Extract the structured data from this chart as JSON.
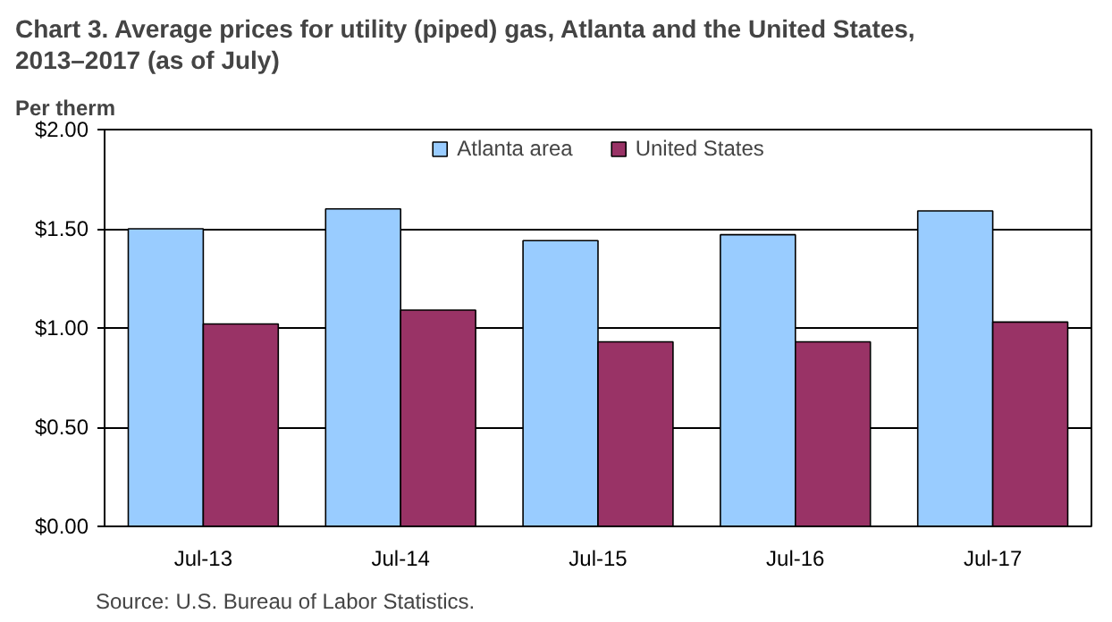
{
  "chart_data": {
    "type": "bar",
    "title": "Chart 3. Average prices for utility (piped) gas, Atlanta and the United States, 2013–2017 (as of July)",
    "ylabel": "Per therm",
    "categories": [
      "Jul-13",
      "Jul-14",
      "Jul-15",
      "Jul-16",
      "Jul-17"
    ],
    "series": [
      {
        "name": "Atlanta area",
        "color": "#99ccff",
        "values": [
          1.5,
          1.6,
          1.44,
          1.47,
          1.59
        ]
      },
      {
        "name": "United States",
        "color": "#993366",
        "values": [
          1.02,
          1.09,
          0.93,
          0.93,
          1.03
        ]
      }
    ],
    "ylim": [
      0,
      2
    ],
    "yticks": [
      {
        "value": 0,
        "label": "$0.00"
      },
      {
        "value": 0.5,
        "label": "$0.50"
      },
      {
        "value": 1,
        "label": "$1.00"
      },
      {
        "value": 1.5,
        "label": "$1.50"
      },
      {
        "value": 2,
        "label": "$2.00"
      }
    ],
    "grid": "y",
    "legend": "top",
    "annotations": [
      "Source: U.S. Bureau of Labor Statistics."
    ]
  }
}
